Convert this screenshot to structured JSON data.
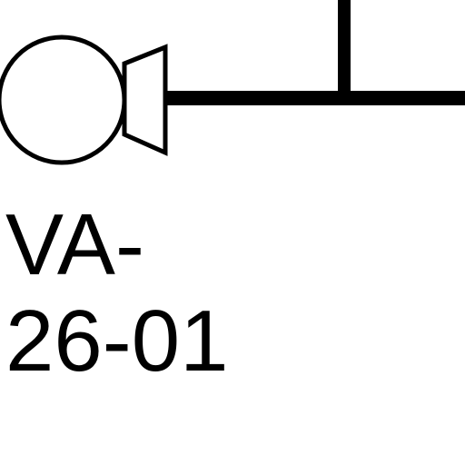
{
  "diagram": {
    "tag_line_1": "VA-",
    "tag_line_2": "26-01",
    "symbol_icon": "valve-actuator-icon",
    "stroke_color": "#000000",
    "background_color": "#ffffff"
  }
}
